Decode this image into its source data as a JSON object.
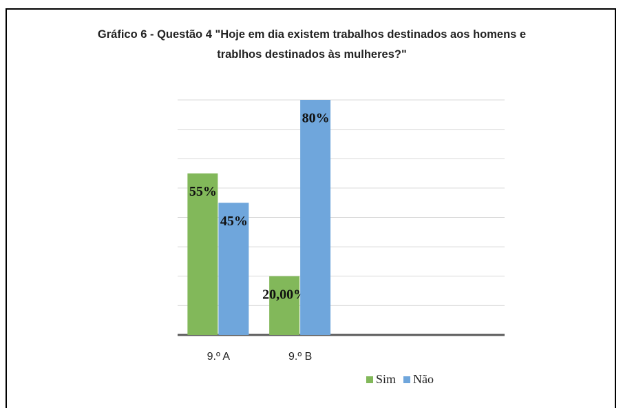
{
  "chart_data": {
    "type": "bar",
    "title": "Gráfico 6 - Questão 4 \"Hoje em dia existem trabalhos destinados aos homens e trablhos destinados às mulheres?\"",
    "categories": [
      "9.º A",
      "9.º B",
      null,
      null
    ],
    "series": [
      {
        "name": "Sim",
        "color": "#82b85a",
        "values": [
          55,
          20,
          null,
          null
        ],
        "value_labels": [
          "55%",
          "20,00%",
          null,
          null
        ]
      },
      {
        "name": "Não",
        "color": "#6fa6dc",
        "values": [
          45,
          80,
          null,
          null
        ],
        "value_labels": [
          "45%",
          "80%",
          null,
          null
        ]
      }
    ],
    "ylim": [
      0,
      80
    ],
    "yticks": [
      0,
      10,
      20,
      30,
      40,
      50,
      60,
      70,
      80
    ],
    "grid": true,
    "legend": "bottom"
  }
}
